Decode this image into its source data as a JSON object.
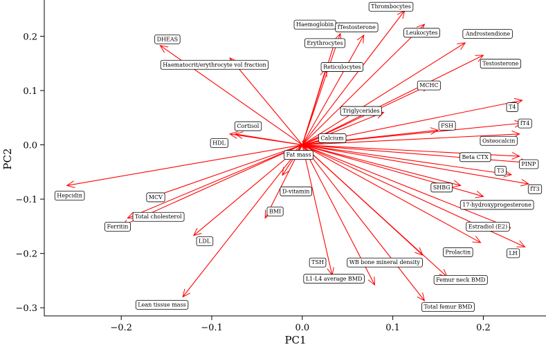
{
  "chart_data": {
    "type": "scatter",
    "subtype": "biplot",
    "xlabel": "PC1",
    "ylabel": "PC2",
    "xlim": [
      -0.285,
      0.27
    ],
    "ylim": [
      -0.315,
      0.268
    ],
    "xticks": [
      -0.2,
      -0.1,
      0.0,
      0.1,
      0.2
    ],
    "xtick_labels": [
      "−0.2",
      "−0.1",
      "0.0",
      "0.1",
      "0.2"
    ],
    "yticks": [
      -0.3,
      -0.2,
      -0.1,
      0.0,
      0.1,
      0.2
    ],
    "ytick_labels": [
      "−0.3",
      "−0.2",
      "−0.1",
      "0.0",
      "0.1",
      "0.2"
    ],
    "grid": false,
    "arrow_color": "#ff0000",
    "origin": [
      0.0,
      0.0
    ],
    "vectors": [
      {
        "label": "Thrombocytes",
        "x": 0.113,
        "y": 0.247,
        "lx": 0.098,
        "ly": 0.255
      },
      {
        "label": "Haemoglobin",
        "x": 0.042,
        "y": 0.205,
        "lx": 0.014,
        "ly": 0.222
      },
      {
        "label": "fTestosterone",
        "x": 0.068,
        "y": 0.202,
        "lx": 0.06,
        "ly": 0.217
      },
      {
        "label": "Erythrocytes",
        "x": 0.037,
        "y": 0.195,
        "lx": 0.025,
        "ly": 0.188
      },
      {
        "label": "Leukocytes",
        "x": 0.135,
        "y": 0.222,
        "lx": 0.132,
        "ly": 0.207
      },
      {
        "label": "Androstendione",
        "x": 0.18,
        "y": 0.188,
        "lx": 0.205,
        "ly": 0.205
      },
      {
        "label": "DHEAS",
        "x": -0.157,
        "y": 0.183,
        "lx": -0.149,
        "ly": 0.195
      },
      {
        "label": "Testosterone",
        "x": 0.2,
        "y": 0.165,
        "lx": 0.219,
        "ly": 0.15
      },
      {
        "label": "Haematocrit/erythrocyte vol fraction",
        "x": -0.08,
        "y": 0.16,
        "lx": -0.097,
        "ly": 0.148
      },
      {
        "label": "Reticulocytes",
        "x": 0.026,
        "y": 0.14,
        "lx": 0.044,
        "ly": 0.144
      },
      {
        "label": "MCHC",
        "x": 0.14,
        "y": 0.11,
        "lx": 0.14,
        "ly": 0.11
      },
      {
        "label": "T4",
        "x": 0.243,
        "y": 0.082,
        "lx": 0.232,
        "ly": 0.07
      },
      {
        "label": "Triglycerides",
        "x": 0.09,
        "y": 0.06,
        "lx": 0.065,
        "ly": 0.063
      },
      {
        "label": "fT4",
        "x": 0.243,
        "y": 0.04,
        "lx": 0.246,
        "ly": 0.04
      },
      {
        "label": "FSH",
        "x": 0.15,
        "y": 0.027,
        "lx": 0.16,
        "ly": 0.036
      },
      {
        "label": "Cortisol",
        "x": -0.074,
        "y": 0.02,
        "lx": -0.06,
        "ly": 0.035
      },
      {
        "label": "Osteocalcin",
        "x": 0.24,
        "y": 0.02,
        "lx": 0.217,
        "ly": 0.008
      },
      {
        "label": "Calcium",
        "x": 0.03,
        "y": 0.013,
        "lx": 0.033,
        "ly": 0.013
      },
      {
        "label": "HDL",
        "x": -0.08,
        "y": 0.02,
        "lx": -0.092,
        "ly": 0.004
      },
      {
        "label": "Fat mass",
        "x": 0.005,
        "y": -0.005,
        "lx": -0.004,
        "ly": -0.018
      },
      {
        "label": "Beta CTX",
        "x": 0.24,
        "y": -0.021,
        "lx": 0.191,
        "ly": -0.022
      },
      {
        "label": "PINP",
        "x": 0.25,
        "y": -0.033,
        "lx": 0.25,
        "ly": -0.035
      },
      {
        "label": "T3",
        "x": 0.231,
        "y": -0.055,
        "lx": 0.219,
        "ly": -0.047
      },
      {
        "label": "fT3",
        "x": 0.25,
        "y": -0.072,
        "lx": 0.257,
        "ly": -0.081
      },
      {
        "label": "Hepcidin",
        "x": -0.26,
        "y": -0.075,
        "lx": -0.257,
        "ly": -0.093
      },
      {
        "label": "D-vitamin",
        "x": -0.022,
        "y": -0.056,
        "lx": -0.007,
        "ly": -0.085
      },
      {
        "label": "SHBG",
        "x": 0.175,
        "y": -0.075,
        "lx": 0.154,
        "ly": -0.078
      },
      {
        "label": "MCV",
        "x": -0.172,
        "y": -0.1,
        "lx": -0.162,
        "ly": -0.096
      },
      {
        "label": "17-hydroxyprogesterone",
        "x": 0.2,
        "y": -0.095,
        "lx": 0.215,
        "ly": -0.11
      },
      {
        "label": "BMI",
        "x": -0.041,
        "y": -0.135,
        "lx": -0.03,
        "ly": -0.122
      },
      {
        "label": "Total cholesterol",
        "x": -0.193,
        "y": -0.135,
        "lx": -0.159,
        "ly": -0.132
      },
      {
        "label": "Ferritin",
        "x": -0.2,
        "y": -0.15,
        "lx": -0.204,
        "ly": -0.15
      },
      {
        "label": "Estradiol (E2)",
        "x": 0.23,
        "y": -0.153,
        "lx": 0.205,
        "ly": -0.15
      },
      {
        "label": "LDL",
        "x": -0.12,
        "y": -0.167,
        "lx": -0.108,
        "ly": -0.177
      },
      {
        "label": "Prolactin",
        "x": 0.197,
        "y": -0.18,
        "lx": 0.172,
        "ly": -0.197
      },
      {
        "label": "LH",
        "x": 0.246,
        "y": -0.188,
        "lx": 0.233,
        "ly": -0.199
      },
      {
        "label": "WB bone mineral density",
        "x": 0.133,
        "y": -0.203,
        "lx": 0.091,
        "ly": -0.216
      },
      {
        "label": "TSH",
        "x": 0.033,
        "y": -0.24,
        "lx": 0.017,
        "ly": -0.216
      },
      {
        "label": "Femur neck BMD",
        "x": 0.16,
        "y": -0.243,
        "lx": 0.175,
        "ly": -0.248
      },
      {
        "label": "L1-L4 average BMD",
        "x": 0.08,
        "y": -0.258,
        "lx": 0.035,
        "ly": -0.246
      },
      {
        "label": "Lean tissue mass",
        "x": -0.132,
        "y": -0.28,
        "lx": -0.155,
        "ly": -0.294
      },
      {
        "label": "Total femur BMD",
        "x": 0.135,
        "y": -0.287,
        "lx": 0.161,
        "ly": -0.298
      }
    ]
  }
}
